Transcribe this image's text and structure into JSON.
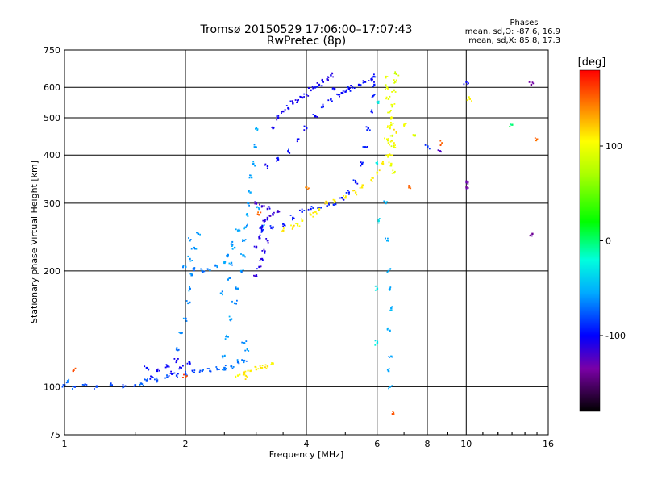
{
  "chart_data": {
    "type": "scatter",
    "title": "Tromsø 20150529 17:06:00–17:07:43",
    "subtitle": "RwPretec (8p)",
    "phases_info": {
      "heading": "Phases",
      "line1": "mean, sd,O: -87.6, 16.9",
      "line2": "mean, sd,X: 85.8, 17.3"
    },
    "xlabel": "Frequency [MHz]",
    "ylabel": "Stationary phase Virtual Height [km]",
    "xscale": "log",
    "yscale": "log",
    "xlim": [
      1,
      16
    ],
    "ylim": [
      75,
      750
    ],
    "grid": true,
    "xticks": [
      1,
      2,
      4,
      6,
      8,
      10,
      16
    ],
    "xtick_labels": [
      "1",
      "2",
      "4",
      "6",
      "8",
      "10",
      "16"
    ],
    "yticks": [
      75,
      100,
      200,
      300,
      400,
      500,
      600,
      750
    ],
    "ytick_labels": [
      "75",
      "100",
      "200",
      "300",
      "400",
      "500",
      "600",
      "750"
    ],
    "colorbar": {
      "label": "[deg]",
      "range": [
        -180,
        180
      ],
      "ticks": [
        100,
        0,
        -100
      ],
      "tick_labels": [
        "100",
        "0",
        "-100"
      ],
      "stops": [
        {
          "v": -180,
          "color": "#000000"
        },
        {
          "v": -135,
          "color": "#7a00a6"
        },
        {
          "v": -100,
          "color": "#0000ff"
        },
        {
          "v": -55,
          "color": "#00aaff"
        },
        {
          "v": -20,
          "color": "#00ffdd"
        },
        {
          "v": 20,
          "color": "#00ff00"
        },
        {
          "v": 70,
          "color": "#aaff00"
        },
        {
          "v": 105,
          "color": "#ffff00"
        },
        {
          "v": 140,
          "color": "#ff8800"
        },
        {
          "v": 180,
          "color": "#ff0000"
        }
      ]
    },
    "series": [
      {
        "points": [
          [
            1.0,
            101,
            -80
          ],
          [
            1.02,
            103,
            -70
          ],
          [
            1.06,
            100,
            -80
          ],
          [
            1.12,
            101,
            -78
          ],
          [
            1.2,
            100,
            -80
          ],
          [
            1.3,
            101,
            -80
          ],
          [
            1.4,
            100,
            -82
          ],
          [
            1.5,
            101,
            -80
          ],
          [
            1.55,
            102,
            -75
          ],
          [
            1.6,
            104,
            -80
          ],
          [
            1.7,
            104,
            -82
          ],
          [
            1.8,
            106,
            -80
          ],
          [
            1.9,
            107,
            -85
          ],
          [
            2.0,
            108,
            -80
          ],
          [
            2.1,
            109,
            -82
          ],
          [
            2.2,
            110,
            -80
          ],
          [
            2.3,
            110,
            -78
          ],
          [
            2.4,
            111,
            -75
          ],
          [
            2.5,
            112,
            -70
          ],
          [
            2.6,
            113,
            -70
          ],
          [
            2.7,
            116,
            -70
          ],
          [
            2.8,
            117,
            -68
          ]
        ]
      },
      {
        "points": [
          [
            1.7,
            110,
            -100
          ],
          [
            1.8,
            113,
            -100
          ],
          [
            1.9,
            117,
            -105
          ],
          [
            1.85,
            108,
            -100
          ],
          [
            1.95,
            112,
            -100
          ],
          [
            2.05,
            115,
            -100
          ],
          [
            1.6,
            112,
            -95
          ],
          [
            1.65,
            106,
            -100
          ]
        ]
      },
      {
        "points": [
          [
            1.9,
            125,
            -70
          ],
          [
            1.95,
            138,
            -65
          ],
          [
            2.0,
            150,
            -65
          ],
          [
            2.03,
            165,
            -62
          ],
          [
            2.05,
            180,
            -60
          ],
          [
            2.07,
            195,
            -60
          ],
          [
            2.0,
            205,
            -60
          ],
          [
            2.05,
            215,
            -62
          ],
          [
            2.1,
            203,
            -65
          ],
          [
            2.2,
            200,
            -65
          ],
          [
            2.3,
            201,
            -65
          ],
          [
            2.4,
            205,
            -63
          ],
          [
            2.5,
            210,
            -60
          ],
          [
            2.55,
            220,
            -60
          ],
          [
            2.6,
            235,
            -60
          ],
          [
            2.05,
            240,
            -60
          ],
          [
            2.1,
            230,
            -60
          ],
          [
            2.15,
            250,
            -62
          ]
        ]
      },
      {
        "points": [
          [
            2.5,
            120,
            -60
          ],
          [
            2.55,
            135,
            -58
          ],
          [
            2.6,
            150,
            -58
          ],
          [
            2.65,
            165,
            -60
          ],
          [
            2.7,
            180,
            -60
          ],
          [
            2.75,
            200,
            -60
          ],
          [
            2.78,
            220,
            -58
          ],
          [
            2.8,
            240,
            -60
          ],
          [
            2.82,
            260,
            -60
          ],
          [
            2.84,
            280,
            -58
          ],
          [
            2.86,
            300,
            -55
          ],
          [
            2.9,
            320,
            -55
          ],
          [
            2.92,
            350,
            -55
          ],
          [
            2.95,
            380,
            -55
          ],
          [
            2.97,
            420,
            -55
          ],
          [
            3.0,
            470,
            -55
          ],
          [
            2.6,
            210,
            -60
          ],
          [
            2.55,
            190,
            -62
          ],
          [
            2.45,
            175,
            -60
          ],
          [
            2.65,
            230,
            -55
          ],
          [
            2.7,
            255,
            -55
          ],
          [
            3.05,
            290,
            -55
          ],
          [
            3.1,
            260,
            -55
          ],
          [
            2.8,
            130,
            -60
          ],
          [
            2.85,
            125,
            -60
          ],
          [
            2.5,
            112,
            -70
          ]
        ]
      },
      {
        "points": [
          [
            3.0,
            230,
            -110
          ],
          [
            3.05,
            245,
            -110
          ],
          [
            3.1,
            260,
            -110
          ],
          [
            3.15,
            270,
            -110
          ],
          [
            3.2,
            275,
            -112
          ],
          [
            3.3,
            280,
            -115
          ],
          [
            3.4,
            285,
            -115
          ],
          [
            3.0,
            300,
            -118
          ],
          [
            3.1,
            295,
            -115
          ],
          [
            3.2,
            290,
            -115
          ],
          [
            3.1,
            215,
            -110
          ],
          [
            3.15,
            225,
            -112
          ],
          [
            3.2,
            240,
            -110
          ],
          [
            3.0,
            195,
            -110
          ],
          [
            3.05,
            205,
            -110
          ]
        ]
      },
      {
        "points": [
          [
            3.1,
            255,
            -95
          ],
          [
            3.3,
            260,
            -95
          ],
          [
            3.5,
            265,
            -95
          ],
          [
            3.7,
            275,
            -95
          ],
          [
            3.9,
            285,
            -95
          ],
          [
            4.1,
            290,
            -95
          ],
          [
            4.3,
            292,
            -95
          ],
          [
            4.5,
            295,
            -95
          ],
          [
            4.7,
            300,
            -95
          ],
          [
            4.9,
            310,
            -95
          ],
          [
            5.1,
            320,
            -95
          ],
          [
            5.3,
            340,
            -95
          ],
          [
            5.5,
            380,
            -95
          ],
          [
            5.6,
            420,
            -95
          ],
          [
            5.7,
            470,
            -95
          ],
          [
            5.8,
            520,
            -95
          ],
          [
            5.85,
            570,
            -95
          ],
          [
            5.9,
            610,
            -95
          ],
          [
            5.88,
            640,
            -95
          ]
        ]
      },
      {
        "points": [
          [
            3.2,
            375,
            -100
          ],
          [
            3.4,
            390,
            -100
          ],
          [
            3.6,
            410,
            -100
          ],
          [
            3.8,
            440,
            -100
          ],
          [
            4.0,
            470,
            -100
          ],
          [
            4.2,
            505,
            -100
          ],
          [
            4.4,
            535,
            -100
          ],
          [
            4.6,
            560,
            -100
          ],
          [
            4.8,
            575,
            -100
          ],
          [
            5.0,
            585,
            -100
          ],
          [
            5.2,
            600,
            -100
          ],
          [
            5.4,
            610,
            -100
          ],
          [
            5.6,
            620,
            -100
          ],
          [
            5.8,
            630,
            -100
          ],
          [
            3.5,
            520,
            -105
          ],
          [
            3.7,
            545,
            -105
          ],
          [
            3.9,
            565,
            -105
          ],
          [
            4.1,
            590,
            -105
          ],
          [
            4.3,
            610,
            -105
          ],
          [
            4.5,
            630,
            -105
          ],
          [
            4.6,
            645,
            -105
          ],
          [
            3.4,
            500,
            -105
          ],
          [
            3.3,
            470,
            -105
          ],
          [
            3.6,
            530,
            -103
          ],
          [
            3.8,
            555,
            -103
          ],
          [
            4.0,
            575,
            -103
          ],
          [
            4.2,
            600,
            -103
          ],
          [
            4.4,
            620,
            -103
          ],
          [
            4.7,
            595,
            -100
          ],
          [
            4.9,
            580,
            -100
          ],
          [
            5.1,
            595,
            -100
          ]
        ]
      },
      {
        "points": [
          [
            3.5,
            255,
            110
          ],
          [
            3.7,
            260,
            110
          ],
          [
            3.9,
            270,
            110
          ],
          [
            4.1,
            280,
            110
          ],
          [
            4.3,
            290,
            110
          ],
          [
            4.5,
            300,
            110
          ],
          [
            4.7,
            305,
            110
          ],
          [
            5.0,
            310,
            110
          ],
          [
            5.3,
            320,
            110
          ],
          [
            5.5,
            330,
            110
          ],
          [
            5.8,
            345,
            110
          ],
          [
            6.0,
            360,
            110
          ],
          [
            6.2,
            380,
            110
          ],
          [
            6.4,
            400,
            110
          ],
          [
            6.6,
            430,
            110
          ],
          [
            6.7,
            460,
            110
          ],
          [
            3.8,
            265,
            105
          ],
          [
            4.2,
            285,
            108
          ]
        ]
      },
      {
        "points": [
          [
            6.3,
            640,
            95
          ],
          [
            6.35,
            600,
            95
          ],
          [
            6.4,
            560,
            95
          ],
          [
            6.45,
            520,
            95
          ],
          [
            6.5,
            480,
            95
          ],
          [
            6.55,
            450,
            95
          ],
          [
            6.6,
            420,
            95
          ],
          [
            6.5,
            500,
            100
          ],
          [
            6.45,
            470,
            100
          ],
          [
            6.4,
            430,
            100
          ],
          [
            6.55,
            540,
            95
          ],
          [
            6.6,
            590,
            90
          ],
          [
            6.65,
            620,
            90
          ],
          [
            6.7,
            650,
            85
          ],
          [
            6.5,
            380,
            100
          ],
          [
            6.45,
            400,
            100
          ],
          [
            6.6,
            360,
            95
          ],
          [
            6.35,
            440,
            100
          ]
        ]
      },
      {
        "points": [
          [
            6.3,
            300,
            -50
          ],
          [
            6.35,
            240,
            -55
          ],
          [
            6.4,
            200,
            -55
          ],
          [
            6.45,
            180,
            -55
          ],
          [
            6.5,
            160,
            -55
          ],
          [
            6.45,
            140,
            -55
          ],
          [
            6.5,
            120,
            -55
          ],
          [
            6.4,
            110,
            -55
          ],
          [
            6.45,
            100,
            -55
          ],
          [
            6.0,
            130,
            -30
          ],
          [
            6.0,
            180,
            -30
          ],
          [
            6.05,
            270,
            -30
          ],
          [
            6.0,
            380,
            -30
          ],
          [
            6.0,
            550,
            -30
          ]
        ]
      },
      {
        "points": [
          [
            2.8,
            108,
            110
          ],
          [
            2.9,
            110,
            110
          ],
          [
            3.0,
            111,
            110
          ],
          [
            3.1,
            112,
            110
          ],
          [
            3.2,
            113,
            110
          ],
          [
            3.3,
            115,
            110
          ],
          [
            2.7,
            107,
            105
          ],
          [
            2.85,
            106,
            110
          ]
        ]
      },
      {
        "points": [
          [
            1.05,
            110,
            160
          ],
          [
            2.0,
            106,
            160
          ],
          [
            3.05,
            280,
            150
          ],
          [
            4.0,
            330,
            140
          ],
          [
            6.55,
            85,
            160
          ],
          [
            7.2,
            330,
            150
          ],
          [
            8.7,
            430,
            150
          ],
          [
            15.0,
            440,
            150
          ],
          [
            10.0,
            330,
            -140
          ]
        ]
      },
      {
        "points": [
          [
            7.0,
            480,
            100
          ],
          [
            7.4,
            450,
            90
          ],
          [
            8.6,
            410,
            -120
          ],
          [
            10.0,
            620,
            -100
          ],
          [
            10.0,
            340,
            -130
          ],
          [
            13.0,
            480,
            0
          ],
          [
            14.5,
            610,
            -140
          ],
          [
            14.6,
            250,
            -140
          ],
          [
            10.2,
            560,
            110
          ],
          [
            8.0,
            420,
            -90
          ]
        ]
      }
    ]
  }
}
